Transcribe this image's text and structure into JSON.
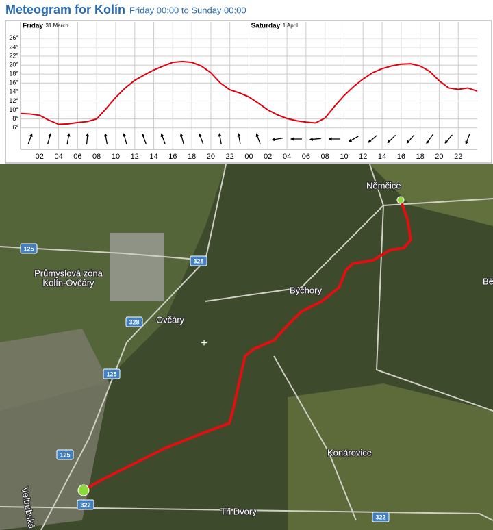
{
  "chart_data": {
    "type": "line",
    "title": "Meteogram for Kolín",
    "subtitle": "Friday 00:00 to Sunday 00:00",
    "day_labels": [
      {
        "day": "Friday",
        "date": "31 March"
      },
      {
        "day": "Saturday",
        "date": "1 April"
      }
    ],
    "x": [
      0,
      1,
      2,
      3,
      4,
      5,
      6,
      7,
      8,
      9,
      10,
      11,
      12,
      13,
      14,
      15,
      16,
      17,
      18,
      19,
      20,
      21,
      22,
      23,
      24,
      25,
      26,
      27,
      28,
      29,
      30,
      31,
      32,
      33,
      34,
      35,
      36,
      37,
      38,
      39,
      40,
      41,
      42,
      43,
      44,
      45,
      46,
      47,
      48
    ],
    "series": [
      {
        "name": "Temperature",
        "color": "#e0000d",
        "values": [
          9.2,
          9.1,
          8.8,
          7.7,
          6.8,
          6.9,
          7.2,
          7.4,
          8.0,
          10.3,
          12.8,
          14.9,
          16.6,
          17.8,
          18.9,
          19.8,
          20.6,
          20.8,
          20.6,
          19.8,
          18.3,
          16.0,
          14.5,
          13.8,
          12.9,
          11.5,
          10.0,
          8.9,
          8.1,
          7.6,
          7.3,
          7.1,
          8.2,
          10.8,
          13.2,
          15.2,
          16.9,
          18.3,
          19.2,
          19.8,
          20.2,
          20.3,
          19.8,
          18.6,
          16.5,
          14.9,
          14.6,
          14.9,
          14.2
        ]
      }
    ],
    "wind": {
      "x": [
        1,
        3,
        5,
        7,
        9,
        11,
        13,
        15,
        17,
        19,
        21,
        23,
        25,
        27,
        29,
        31,
        33,
        35,
        37,
        39,
        41,
        43,
        45,
        47
      ],
      "direction": [
        20,
        15,
        10,
        5,
        -10,
        -15,
        -20,
        -20,
        -15,
        -20,
        -10,
        -10,
        -20,
        -100,
        -90,
        -95,
        -90,
        -120,
        -130,
        -135,
        -140,
        -145,
        -140,
        -160
      ]
    },
    "xlim": [
      0,
      48
    ],
    "xticks": [
      {
        "value": 2,
        "label": "02"
      },
      {
        "value": 4,
        "label": "04"
      },
      {
        "value": 6,
        "label": "06"
      },
      {
        "value": 8,
        "label": "08"
      },
      10,
      12,
      14,
      16,
      18,
      20,
      22,
      {
        "value": 24,
        "label": "00"
      },
      {
        "value": 26,
        "label": "02"
      },
      {
        "value": 28,
        "label": "04"
      },
      {
        "value": 30,
        "label": "06"
      },
      {
        "value": 32,
        "label": "08"
      },
      {
        "value": 34,
        "label": "10"
      },
      {
        "value": 36,
        "label": "12"
      },
      {
        "value": 38,
        "label": "14"
      },
      {
        "value": 40,
        "label": "16"
      },
      {
        "value": 42,
        "label": "18"
      },
      {
        "value": 44,
        "label": "20"
      },
      {
        "value": 46,
        "label": "22"
      }
    ],
    "ylim": [
      5.5,
      27.5
    ],
    "yticks": [
      {
        "value": 6,
        "label": "6°"
      },
      {
        "value": 8,
        "label": "8°"
      },
      {
        "value": 10,
        "label": "10°"
      },
      {
        "value": 12,
        "label": "12°"
      },
      {
        "value": 14,
        "label": "14°"
      },
      {
        "value": 16,
        "label": "16°"
      },
      {
        "value": 18,
        "label": "18°"
      },
      {
        "value": 20,
        "label": "20°"
      },
      {
        "value": 22,
        "label": "22°"
      },
      {
        "value": 24,
        "label": "24°"
      },
      {
        "value": 26,
        "label": "26°"
      }
    ],
    "grid": true
  },
  "map": {
    "places": [
      "Němčice",
      "Průmyslová zóna",
      "Kolín-Ovčáry",
      "Býchory",
      "Bě",
      "Ovčáry",
      "Konárovice",
      "Veltrubská",
      "Tři Dvory"
    ],
    "roads": [
      "125",
      "328",
      "328",
      "125",
      "125",
      "322",
      "322"
    ]
  }
}
